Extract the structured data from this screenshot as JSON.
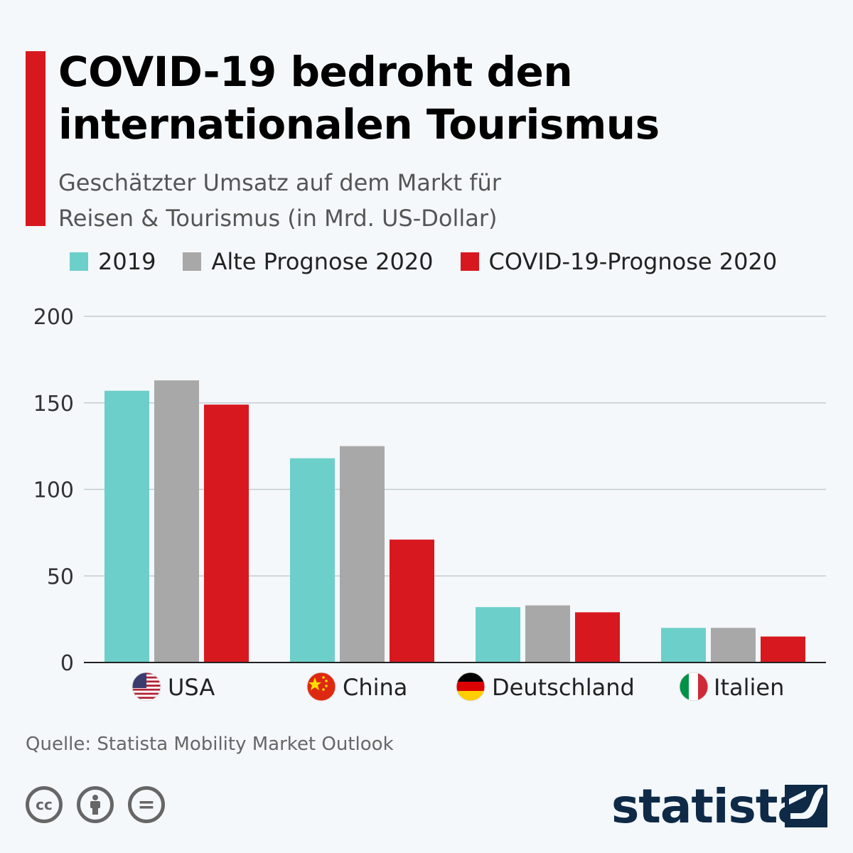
{
  "header": {
    "title_line1": "COVID-19 bedroht den",
    "title_line2": "internationalen Tourismus",
    "subtitle_line1": "Geschätzter Umsatz auf dem Markt für",
    "subtitle_line2": "Reisen & Tourismus (in Mrd. US-Dollar)"
  },
  "colors": {
    "accent": "#d7191f",
    "series_2019": "#6ccfca",
    "series_old": "#a8a8a8",
    "series_covid": "#d7191f",
    "brand": "#0e2a47"
  },
  "chart_data": {
    "type": "bar",
    "categories": [
      "USA",
      "China",
      "Deutschland",
      "Italien"
    ],
    "category_icons": [
      "us-flag-icon",
      "china-flag-icon",
      "germany-flag-icon",
      "italy-flag-icon"
    ],
    "series": [
      {
        "name": "2019",
        "values": [
          157,
          118,
          32,
          20
        ]
      },
      {
        "name": "Alte Prognose 2020",
        "values": [
          163,
          125,
          33,
          20
        ]
      },
      {
        "name": "COVID-19-Prognose 2020",
        "values": [
          149,
          71,
          29,
          15
        ]
      }
    ],
    "yticks": [
      0,
      50,
      100,
      150,
      200
    ],
    "ylim": [
      0,
      200
    ],
    "grid": true,
    "legend_position": "top-left"
  },
  "footer": {
    "source": "Quelle: Statista Mobility Market Outlook",
    "license_icons": [
      "cc-icon",
      "by-icon",
      "nd-icon"
    ],
    "cc_label": "cc",
    "nd_label": "=",
    "brand": "statista"
  }
}
